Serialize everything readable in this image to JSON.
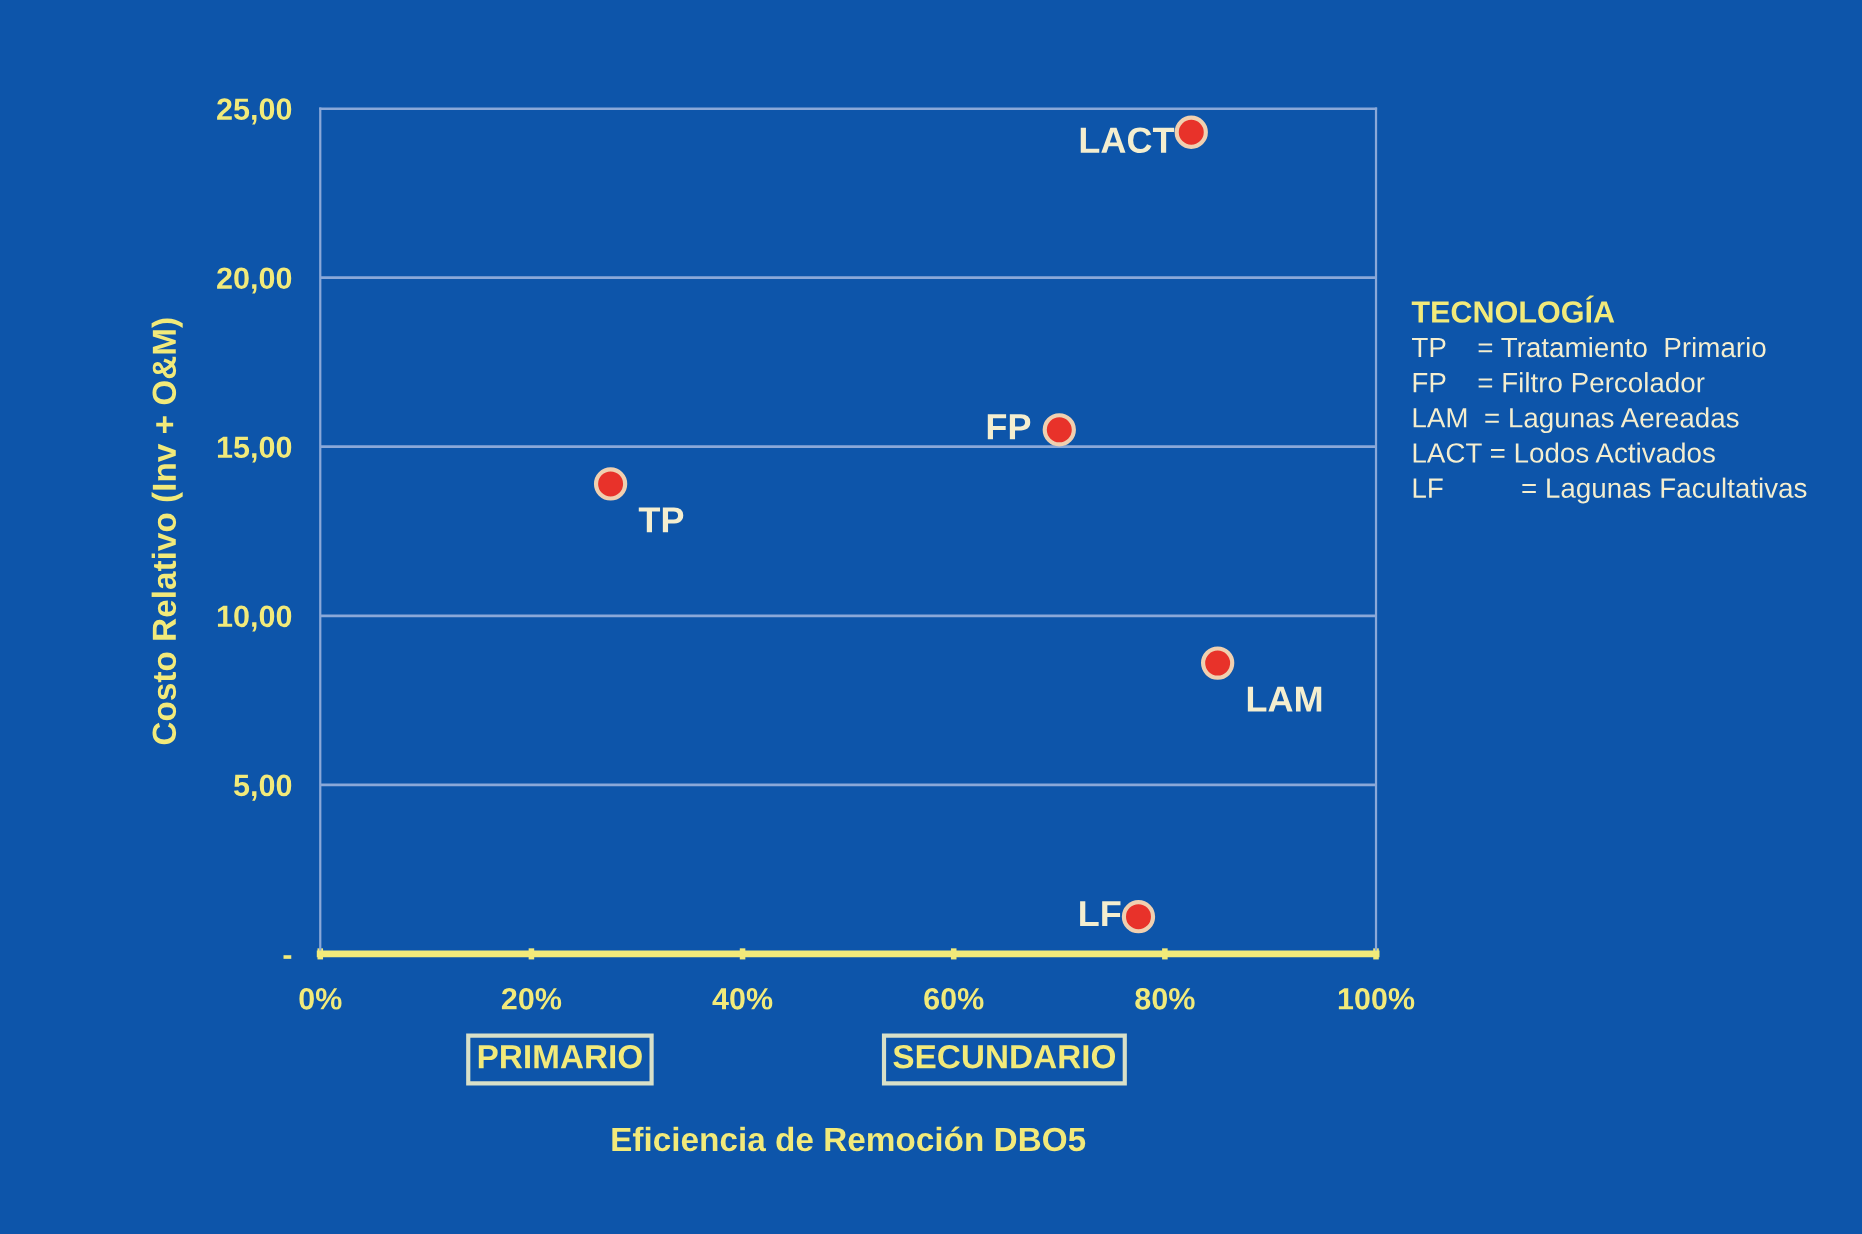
{
  "chart_data": {
    "type": "scatter",
    "xlabel": "Eficiencia de Remoción DBO5",
    "ylabel": "Costo Relativo (Inv + O&M)",
    "xlim": [
      0,
      100
    ],
    "xticks": [
      {
        "value": 0,
        "label": "0%"
      },
      {
        "value": 20,
        "label": "20%"
      },
      {
        "value": 40,
        "label": "40%"
      },
      {
        "value": 60,
        "label": "60%"
      },
      {
        "value": 80,
        "label": "80%"
      },
      {
        "value": 100,
        "label": "100%"
      }
    ],
    "ylim": [
      0,
      25
    ],
    "yticks": [
      {
        "value": 0,
        "label": "-"
      },
      {
        "value": 5,
        "label": "5,00"
      },
      {
        "value": 10,
        "label": "10,00"
      },
      {
        "value": 15,
        "label": "15,00"
      },
      {
        "value": 20,
        "label": "20,00"
      },
      {
        "value": 25,
        "label": "25,00"
      }
    ],
    "grid": "y",
    "marker": "circle",
    "series": [
      {
        "name": "TP",
        "color": "#e8322a",
        "x": [
          27.5
        ],
        "values": [
          13.9
        ]
      },
      {
        "name": "FP",
        "color": "#e8322a",
        "x": [
          70
        ],
        "values": [
          15.5
        ]
      },
      {
        "name": "LACT",
        "color": "#e8322a",
        "x": [
          82.5
        ],
        "values": [
          24.3
        ]
      },
      {
        "name": "LAM",
        "color": "#e8322a",
        "x": [
          85
        ],
        "values": [
          8.6
        ]
      },
      {
        "name": "LF",
        "color": "#e8322a",
        "x": [
          77.5
        ],
        "values": [
          1.1
        ]
      }
    ],
    "annotations": [
      "PRIMARIO",
      "SECUNDARIO",
      "TECNOLOGÍA",
      "TP    = Tratamiento  Primario",
      "FP    = Filtro Percolador",
      "LAM  = Lagunas Aereadas",
      "LACT = Lodos Activados",
      "LF          = Lagunas Facultativas"
    ]
  }
}
